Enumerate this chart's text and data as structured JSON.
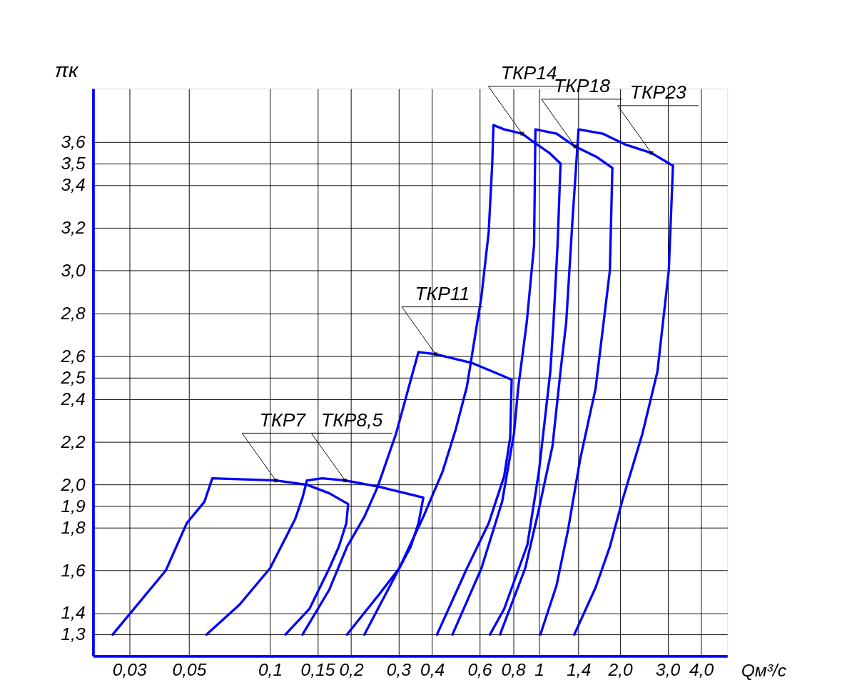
{
  "chart_data": {
    "type": "line",
    "xlabel": "Qм³/с",
    "ylabel": "πк",
    "xlim": [
      0.022,
      5.0
    ],
    "ylim": [
      1.2,
      3.85
    ],
    "xticks": [
      {
        "value": 0.03,
        "label": "0,03"
      },
      {
        "value": 0.05,
        "label": "0,05"
      },
      {
        "value": 0.1,
        "label": "0,1"
      },
      {
        "value": 0.15,
        "label": "0,15"
      },
      {
        "value": 0.2,
        "label": "0,2"
      },
      {
        "value": 0.3,
        "label": "0,3"
      },
      {
        "value": 0.4,
        "label": "0,4"
      },
      {
        "value": 0.6,
        "label": "0,6"
      },
      {
        "value": 0.8,
        "label": "0,8"
      },
      {
        "value": 1,
        "label": "1"
      },
      {
        "value": 1.4,
        "label": "1,4"
      },
      {
        "value": 2,
        "label": "2,0"
      },
      {
        "value": 3,
        "label": "3,0"
      },
      {
        "value": 4,
        "label": "4,0"
      }
    ],
    "yticks": [
      {
        "value": 1.3,
        "label": "1,3"
      },
      {
        "value": 1.4,
        "label": "1,4"
      },
      {
        "value": 1.6,
        "label": "1,6"
      },
      {
        "value": 1.8,
        "label": "1,8"
      },
      {
        "value": 1.9,
        "label": "1,9"
      },
      {
        "value": 2.0,
        "label": "2,0"
      },
      {
        "value": 2.2,
        "label": "2,2"
      },
      {
        "value": 2.4,
        "label": "2,4"
      },
      {
        "value": 2.5,
        "label": "2,5"
      },
      {
        "value": 2.6,
        "label": "2,6"
      },
      {
        "value": 2.8,
        "label": "2,8"
      },
      {
        "value": 3.0,
        "label": "3,0"
      },
      {
        "value": 3.2,
        "label": "3,2"
      },
      {
        "value": 3.4,
        "label": "3,4"
      },
      {
        "value": 3.5,
        "label": "3,5"
      },
      {
        "value": 3.6,
        "label": "3,6"
      }
    ],
    "grid": true,
    "log": "x",
    "series": [
      {
        "color": "#0000ff",
        "x": [
          0.026,
          0.041,
          0.049,
          0.057,
          0.061,
          0.105,
          0.137,
          0.166,
          0.195,
          0.192,
          0.18,
          0.166,
          0.14,
          0.114
        ],
        "values": [
          1.3,
          1.6,
          1.82,
          1.92,
          2.03,
          2.02,
          2.0,
          1.96,
          1.91,
          1.82,
          1.71,
          1.61,
          1.42,
          1.3
        ]
      },
      {
        "color": "#0000ff",
        "x": [
          0.058,
          0.077,
          0.1,
          0.124,
          0.132,
          0.137,
          0.156,
          0.19,
          0.255,
          0.371,
          0.356,
          0.333,
          0.302,
          0.255,
          0.193
        ],
        "values": [
          1.3,
          1.44,
          1.61,
          1.84,
          1.94,
          2.02,
          2.03,
          2.02,
          1.99,
          1.94,
          1.82,
          1.71,
          1.61,
          1.49,
          1.3
        ]
      },
      {
        "color": "#0000ff",
        "x": [
          0.132,
          0.166,
          0.193,
          0.224,
          0.251,
          0.294,
          0.34,
          0.356,
          0.412,
          0.559,
          0.728,
          0.79,
          0.78,
          0.741,
          0.649,
          0.539,
          0.417
        ],
        "values": [
          1.3,
          1.51,
          1.71,
          1.85,
          1.99,
          2.24,
          2.53,
          2.62,
          2.61,
          2.57,
          2.51,
          2.49,
          2.22,
          2.04,
          1.82,
          1.61,
          1.3
        ]
      },
      {
        "color": "#0000ff",
        "x": [
          0.224,
          0.302,
          0.371,
          0.437,
          0.49,
          0.539,
          0.61,
          0.649,
          0.669,
          0.676,
          0.741,
          0.864,
          0.98,
          1.09,
          1.2,
          1.17,
          1.13,
          1.1,
          0.997,
          0.904,
          0.741,
          0.656
        ],
        "values": [
          1.3,
          1.61,
          1.85,
          2.06,
          2.26,
          2.46,
          2.88,
          3.18,
          3.5,
          3.68,
          3.66,
          3.64,
          3.59,
          3.55,
          3.5,
          3.12,
          2.76,
          2.53,
          2.06,
          1.72,
          1.42,
          1.3
        ]
      },
      {
        "color": "#0000ff",
        "x": [
          0.476,
          0.61,
          0.728,
          0.806,
          0.835,
          0.899,
          0.957,
          0.968,
          1.16,
          1.36,
          1.64,
          1.87,
          1.83,
          1.62,
          1.42,
          1.28,
          1.16,
          1.01
        ],
        "values": [
          1.3,
          1.61,
          1.92,
          2.24,
          2.45,
          2.76,
          3.12,
          3.66,
          3.64,
          3.58,
          3.53,
          3.48,
          3.0,
          2.45,
          2.12,
          1.79,
          1.53,
          1.3
        ]
      },
      {
        "color": "#0000ff",
        "x": [
          0.715,
          0.887,
          0.991,
          1.12,
          1.2,
          1.26,
          1.33,
          1.4,
          1.72,
          2.08,
          2.61,
          3.14,
          3.03,
          2.75,
          2.42,
          2.03,
          1.83,
          1.62,
          1.35
        ],
        "values": [
          1.3,
          1.61,
          1.87,
          2.18,
          2.53,
          2.76,
          3.24,
          3.66,
          3.64,
          3.59,
          3.55,
          3.49,
          3.0,
          2.53,
          2.24,
          1.92,
          1.71,
          1.52,
          1.3
        ]
      }
    ],
    "annotations": [
      {
        "text": "ТКР7",
        "x": 0.105,
        "y": 2.02
      },
      {
        "text": "ТКР8,5",
        "x": 0.19,
        "y": 2.02
      },
      {
        "text": "ТКР11",
        "x": 0.412,
        "y": 2.61
      },
      {
        "text": "ТКР14",
        "x": 0.864,
        "y": 3.64
      },
      {
        "text": "ТКР18",
        "x": 1.36,
        "y": 3.58
      },
      {
        "text": "ТКР23",
        "x": 2.61,
        "y": 3.55
      }
    ]
  }
}
